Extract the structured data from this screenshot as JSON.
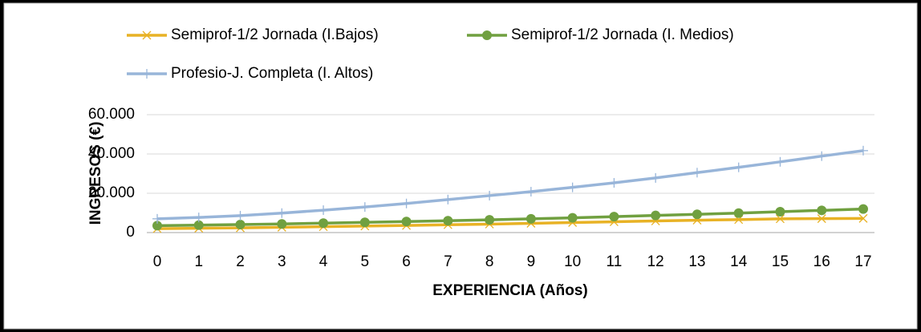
{
  "chart_data": {
    "type": "line",
    "xlabel": "EXPERIENCIA (Años)",
    "ylabel": "INGRESOS  (€)",
    "categories": [
      "0",
      "1",
      "2",
      "3",
      "4",
      "5",
      "6",
      "7",
      "8",
      "9",
      "10",
      "11",
      "12",
      "13",
      "14",
      "15",
      "16",
      "17"
    ],
    "series": [
      {
        "name": "Semiprof-1/2 Jornada (I.Bajos)",
        "color": "#e8b225",
        "marker": "x",
        "values": [
          2000,
          2200,
          2400,
          2700,
          3000,
          3300,
          3600,
          4000,
          4300,
          4700,
          5100,
          5500,
          5900,
          6300,
          6600,
          7000,
          7100,
          7200
        ]
      },
      {
        "name": "Semiprof-1/2 Jornada (I. Medios)",
        "color": "#70a040",
        "marker": "circle",
        "values": [
          3500,
          3800,
          4100,
          4400,
          4800,
          5200,
          5600,
          6000,
          6500,
          7000,
          7500,
          8100,
          8700,
          9300,
          9900,
          10600,
          11300,
          12000
        ]
      },
      {
        "name": "Profesio-J. Completa (I. Altos)",
        "color": "#98b5d9",
        "marker": "plus",
        "values": [
          7000,
          7700,
          8600,
          9900,
          11400,
          13000,
          14800,
          16800,
          18800,
          20800,
          23000,
          25300,
          27800,
          30500,
          33200,
          36000,
          38900,
          41700
        ]
      }
    ],
    "ylim": [
      0,
      60000
    ],
    "yticks": [
      0,
      {
        "value": 20000,
        "label": "20.000"
      },
      {
        "value": 40000,
        "label": "40.000"
      },
      {
        "value": 60000,
        "label": "60.000"
      }
    ],
    "grid": true,
    "legend": "top"
  }
}
